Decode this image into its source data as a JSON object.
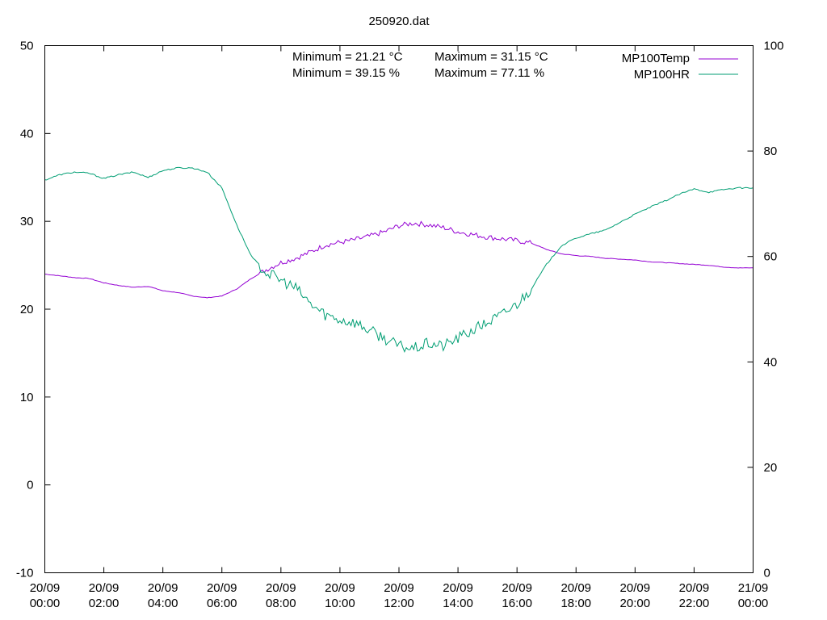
{
  "chart_data": {
    "type": "line",
    "title": "250920.dat",
    "xlabel": "",
    "ylabel": "",
    "y2label": "",
    "xlim_hours": [
      0,
      24
    ],
    "ylim": [
      -10,
      50
    ],
    "y2lim": [
      0,
      100
    ],
    "yticks": [
      -10,
      0,
      10,
      20,
      30,
      40,
      50
    ],
    "y2ticks": [
      0,
      20,
      40,
      60,
      80,
      100
    ],
    "xticks": [
      {
        "hour": 0,
        "date": "20/09",
        "time": "00:00"
      },
      {
        "hour": 2,
        "date": "20/09",
        "time": "02:00"
      },
      {
        "hour": 4,
        "date": "20/09",
        "time": "04:00"
      },
      {
        "hour": 6,
        "date": "20/09",
        "time": "06:00"
      },
      {
        "hour": 8,
        "date": "20/09",
        "time": "08:00"
      },
      {
        "hour": 10,
        "date": "20/09",
        "time": "10:00"
      },
      {
        "hour": 12,
        "date": "20/09",
        "time": "12:00"
      },
      {
        "hour": 14,
        "date": "20/09",
        "time": "14:00"
      },
      {
        "hour": 16,
        "date": "20/09",
        "time": "16:00"
      },
      {
        "hour": 18,
        "date": "20/09",
        "time": "18:00"
      },
      {
        "hour": 20,
        "date": "20/09",
        "time": "20:00"
      },
      {
        "hour": 22,
        "date": "20/09",
        "time": "22:00"
      },
      {
        "hour": 24,
        "date": "21/09",
        "time": "00:00"
      }
    ],
    "legend_position": "top-right",
    "grid": false,
    "series": [
      {
        "name": "MP100Temp",
        "axis": "y1",
        "color": "#9400d3",
        "x": [
          0,
          0.5,
          1,
          1.5,
          2,
          2.5,
          3,
          3.5,
          4,
          4.5,
          5,
          5.5,
          6,
          6.5,
          7,
          7.5,
          8,
          8.5,
          9,
          9.5,
          10,
          10.5,
          11,
          11.5,
          12,
          12.5,
          13,
          13.5,
          14,
          14.5,
          15,
          15.5,
          16,
          16.5,
          17,
          17.5,
          18,
          18.5,
          19,
          19.5,
          20,
          20.5,
          21,
          21.5,
          22,
          22.5,
          23,
          23.5,
          24
        ],
        "y": [
          24.0,
          23.8,
          23.6,
          23.5,
          23.0,
          22.7,
          22.5,
          22.6,
          22.1,
          21.9,
          21.5,
          21.3,
          21.5,
          22.3,
          23.5,
          24.5,
          25.3,
          25.8,
          26.5,
          27.3,
          27.6,
          27.9,
          28.3,
          28.8,
          29.5,
          29.8,
          29.6,
          29.3,
          28.8,
          28.5,
          28.2,
          28.0,
          27.8,
          27.5,
          26.8,
          26.3,
          26.1,
          26.0,
          25.8,
          25.7,
          25.6,
          25.4,
          25.3,
          25.2,
          25.1,
          25.0,
          24.8,
          24.7,
          24.7
        ]
      },
      {
        "name": "MP100HR",
        "axis": "y2",
        "color": "#009e73",
        "x": [
          0,
          0.5,
          1,
          1.5,
          2,
          2.5,
          3,
          3.5,
          4,
          4.5,
          5,
          5.5,
          6,
          6.5,
          7,
          7.5,
          8,
          8.5,
          9,
          9.5,
          10,
          10.5,
          11,
          11.5,
          12,
          12.5,
          13,
          13.5,
          14,
          14.5,
          15,
          15.5,
          16,
          16.5,
          17,
          17.5,
          18,
          18.5,
          19,
          19.5,
          20,
          20.5,
          21,
          21.5,
          22,
          22.5,
          23,
          23.5,
          24
        ],
        "y": [
          74.5,
          75.5,
          76.0,
          75.8,
          74.8,
          75.5,
          76.0,
          75.0,
          76.3,
          76.8,
          76.8,
          76.0,
          73.0,
          66.0,
          60.0,
          57.0,
          55.5,
          54.0,
          51.0,
          49.0,
          48.0,
          47.5,
          46.0,
          44.5,
          43.0,
          42.5,
          43.5,
          43.0,
          44.5,
          46.0,
          47.5,
          49.0,
          51.0,
          54.0,
          58.5,
          62.0,
          63.5,
          64.3,
          65.0,
          66.5,
          68.0,
          69.3,
          70.5,
          71.8,
          72.8,
          72.2,
          72.7,
          73.0,
          73.0
        ]
      }
    ],
    "annotations": {
      "temp_min": "Minimum = 21.21 °C",
      "temp_max": "Maximum = 31.15 °C",
      "hr_min": "Minimum = 39.15 %",
      "hr_max": "Maximum = 77.11 %"
    }
  }
}
